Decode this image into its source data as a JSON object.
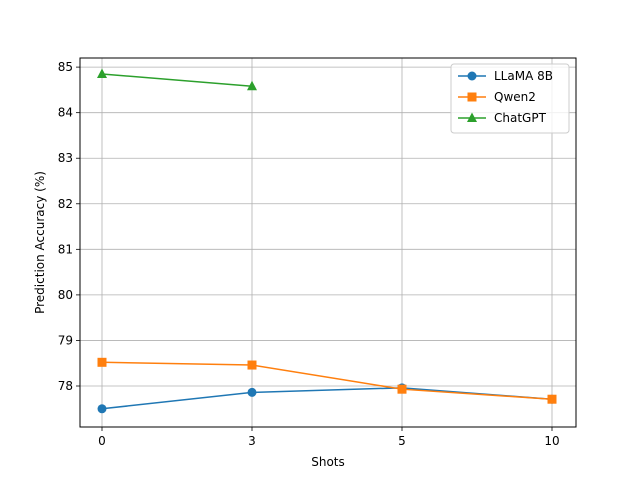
{
  "chart_data": {
    "type": "line",
    "xlabel": "Shots",
    "ylabel": "Prediction Accuracy (%)",
    "categories": [
      "0",
      "3",
      "5",
      "10"
    ],
    "ylim": [
      77.1,
      85.2
    ],
    "yticks": [
      78,
      79,
      80,
      81,
      82,
      83,
      84,
      85
    ],
    "grid": true,
    "legend_position": "top-right",
    "series": [
      {
        "name": "LLaMA 8B",
        "color": "#1f77b4",
        "marker": "circle",
        "values": [
          77.5,
          77.86,
          77.96,
          77.71
        ]
      },
      {
        "name": "Qwen2",
        "color": "#ff7f0e",
        "marker": "square",
        "values": [
          78.52,
          78.46,
          77.93,
          77.71
        ]
      },
      {
        "name": "ChatGPT",
        "color": "#2ca02c",
        "marker": "triangle",
        "values": [
          84.85,
          84.58,
          null,
          null
        ]
      }
    ]
  }
}
